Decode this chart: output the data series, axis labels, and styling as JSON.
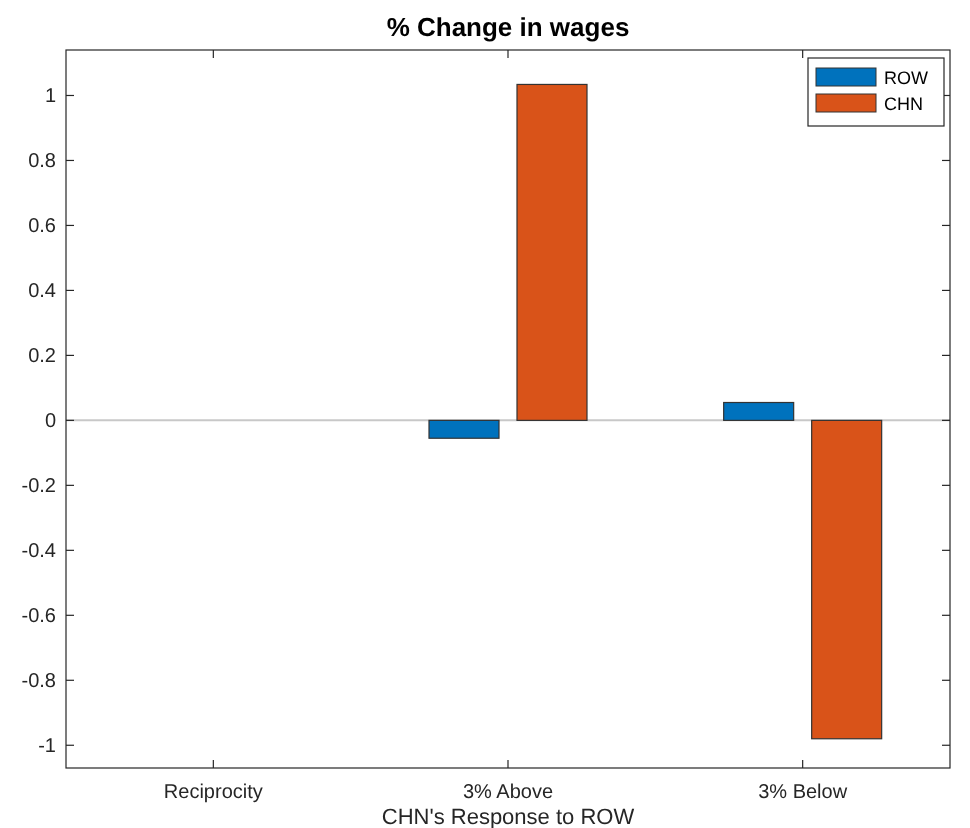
{
  "chart_data": {
    "type": "bar",
    "title": "% Change in wages",
    "xlabel": "CHN's Response to ROW",
    "categories": [
      "Reciprocity",
      "3% Above",
      "3% Below"
    ],
    "series": [
      {
        "name": "ROW",
        "color": "#0072bd",
        "values": [
          0,
          -0.055,
          0.055
        ]
      },
      {
        "name": "CHN",
        "color": "#d95319",
        "values": [
          0,
          1.034,
          -0.98
        ]
      }
    ],
    "ylim": [
      -1.07,
      1.14
    ],
    "yticks": [
      -1,
      -0.8,
      -0.6,
      -0.4,
      -0.2,
      0,
      0.2,
      0.4,
      0.6,
      0.8,
      1
    ],
    "ref_lines": [
      {
        "axis": "y",
        "value": 0,
        "color": "#c8c8c8"
      }
    ],
    "legend": "top right"
  }
}
